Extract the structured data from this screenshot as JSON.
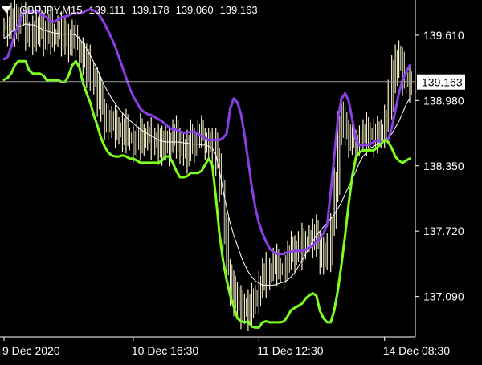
{
  "header": {
    "symbol": "GBPJPY,M15",
    "open": "139.111",
    "high": "139.178",
    "low": "139.060",
    "close": "139.163"
  },
  "colors": {
    "background": "#000000",
    "axis": "#ffffff",
    "price_bars": "#f5f0c8",
    "upper_band": "#8a3ee6",
    "lower_band": "#7cff1e",
    "middle_line": "#ffffff",
    "price_line": "#c8c8c8"
  },
  "chart_data": {
    "type": "line",
    "title": "",
    "ylim": [
      136.7,
      139.95
    ],
    "y_ticks": [
      "139.610",
      "138.980",
      "138.350",
      "137.720",
      "137.090"
    ],
    "y_tick_values": [
      139.61,
      138.98,
      138.35,
      137.72,
      137.09
    ],
    "x_ticks": [
      "9 Dec 2020",
      "10 Dec 16:30",
      "11 Dec 12:30",
      "14 Dec 08:30"
    ],
    "x_tick_positions": [
      0,
      36,
      71,
      106
    ],
    "current_price": "139.163",
    "current_price_value": 139.163,
    "x_max": 113,
    "series": [
      {
        "key": "upper",
        "values": [
          139.38,
          139.4,
          139.5,
          139.62,
          139.71,
          139.8,
          139.84,
          139.84,
          139.83,
          139.85,
          139.82,
          139.8,
          139.78,
          139.74,
          139.74,
          139.76,
          139.78,
          139.79,
          139.8,
          139.82,
          139.82,
          139.82,
          139.83,
          139.85,
          139.86,
          139.85,
          139.83,
          139.78,
          139.72,
          139.65,
          139.58,
          139.5,
          139.4,
          139.3,
          139.2,
          139.1,
          139.02,
          138.96,
          138.9,
          138.87,
          138.85,
          138.84,
          138.82,
          138.8,
          138.78,
          138.75,
          138.72,
          138.7,
          138.7,
          138.68,
          138.67,
          138.67,
          138.68,
          138.68,
          138.66,
          138.64,
          138.62,
          138.6,
          138.6,
          138.6,
          138.6,
          138.62,
          138.66,
          138.9,
          139.0,
          138.96,
          138.85,
          138.65,
          138.4,
          138.15,
          137.95,
          137.8,
          137.7,
          137.62,
          137.55,
          137.52,
          137.5,
          137.5,
          137.5,
          137.52,
          137.52,
          137.53,
          137.53,
          137.53,
          137.54,
          137.56,
          137.58,
          137.62,
          137.65,
          137.7,
          137.78,
          138.1,
          138.45,
          138.8,
          139.0,
          139.05,
          138.98,
          138.8,
          138.6,
          138.55,
          138.55,
          138.55,
          138.56,
          138.58,
          138.6,
          138.58,
          138.6,
          138.6,
          138.72,
          138.88,
          139.05,
          139.18,
          139.25,
          139.32
        ]
      },
      {
        "key": "lower",
        "values": [
          139.18,
          139.2,
          139.24,
          139.32,
          139.36,
          139.36,
          139.36,
          139.27,
          139.24,
          139.24,
          139.24,
          139.22,
          139.17,
          139.18,
          139.17,
          139.18,
          139.16,
          139.16,
          139.22,
          139.32,
          139.36,
          139.3,
          139.15,
          139.05,
          138.96,
          138.84,
          138.74,
          138.62,
          138.54,
          138.48,
          138.45,
          138.44,
          138.44,
          138.45,
          138.44,
          138.42,
          138.42,
          138.4,
          138.38,
          138.38,
          138.38,
          138.38,
          138.38,
          138.38,
          138.4,
          138.44,
          138.44,
          138.38,
          138.3,
          138.24,
          138.24,
          138.25,
          138.28,
          138.28,
          138.28,
          138.3,
          138.36,
          138.42,
          138.36,
          138.05,
          137.7,
          137.44,
          137.25,
          137.1,
          136.99,
          136.88,
          136.85,
          136.84,
          136.85,
          136.8,
          136.79,
          136.79,
          136.84,
          136.85,
          136.84,
          136.84,
          136.84,
          136.84,
          136.85,
          136.9,
          136.96,
          136.98,
          137.0,
          137.02,
          137.07,
          137.1,
          137.12,
          137.1,
          136.95,
          136.88,
          136.84,
          136.84,
          136.96,
          137.15,
          137.4,
          137.68,
          137.98,
          138.25,
          138.43,
          138.48,
          138.5,
          138.5,
          138.5,
          138.5,
          138.53,
          138.56,
          138.6,
          138.58,
          138.52,
          138.44,
          138.4,
          138.38,
          138.4,
          138.42
        ]
      },
      {
        "key": "middle",
        "values": [
          139.58,
          139.6,
          139.64,
          139.66,
          139.69,
          139.7,
          139.72,
          139.71,
          139.71,
          139.7,
          139.68,
          139.66,
          139.65,
          139.64,
          139.63,
          139.63,
          139.62,
          139.62,
          139.62,
          139.62,
          139.61,
          139.58,
          139.53,
          139.48,
          139.42,
          139.35,
          139.28,
          139.2,
          139.12,
          139.06,
          139.0,
          138.95,
          138.9,
          138.86,
          138.82,
          138.79,
          138.76,
          138.73,
          138.7,
          138.68,
          138.66,
          138.64,
          138.62,
          138.6,
          138.59,
          138.58,
          138.58,
          138.58,
          138.58,
          138.58,
          138.57,
          138.57,
          138.56,
          138.56,
          138.56,
          138.55,
          138.55,
          138.54,
          138.52,
          138.46,
          138.3,
          138.12,
          137.95,
          137.8,
          137.68,
          137.58,
          137.48,
          137.4,
          137.33,
          137.28,
          137.24,
          137.22,
          137.2,
          137.2,
          137.2,
          137.2,
          137.21,
          137.22,
          137.23,
          137.25,
          137.28,
          137.32,
          137.38,
          137.44,
          137.5,
          137.56,
          137.62,
          137.68,
          137.72,
          137.76,
          137.8,
          137.84,
          137.88,
          137.94,
          138.0,
          138.08,
          138.15,
          138.22,
          138.3,
          138.38,
          138.44,
          138.48,
          138.52,
          138.54,
          138.56,
          138.58,
          138.6,
          138.62,
          138.66,
          138.72,
          138.78,
          138.86,
          138.94,
          139.0
        ]
      },
      {
        "key": "price",
        "values": [
          139.68,
          139.7,
          139.74,
          139.7,
          139.76,
          139.73,
          139.64,
          139.62,
          139.66,
          139.6,
          139.68,
          139.58,
          139.7,
          139.62,
          139.6,
          139.66,
          139.58,
          139.55,
          139.6,
          139.56,
          139.5,
          139.45,
          139.35,
          139.3,
          139.22,
          139.14,
          139.0,
          138.9,
          138.8,
          138.75,
          138.72,
          138.7,
          138.68,
          138.7,
          138.62,
          138.6,
          138.56,
          138.6,
          138.64,
          138.6,
          138.62,
          138.58,
          138.62,
          138.56,
          138.5,
          138.52,
          138.6,
          138.64,
          138.62,
          138.52,
          138.45,
          138.52,
          138.58,
          138.6,
          138.64,
          138.62,
          138.58,
          138.54,
          138.5,
          138.4,
          138.1,
          137.7,
          137.35,
          137.2,
          137.05,
          136.98,
          136.95,
          137.0,
          136.96,
          137.02,
          137.1,
          137.2,
          137.28,
          137.3,
          137.34,
          137.4,
          137.36,
          137.35,
          137.4,
          137.45,
          137.5,
          137.56,
          137.55,
          137.6,
          137.62,
          137.64,
          137.66,
          137.6,
          137.5,
          137.45,
          137.5,
          137.8,
          138.2,
          138.7,
          138.8,
          138.64,
          138.6,
          138.58,
          138.6,
          138.6,
          138.62,
          138.65,
          138.65,
          138.63,
          138.62,
          138.7,
          138.8,
          139.0,
          139.2,
          139.4,
          139.3,
          139.2,
          139.17,
          139.16
        ]
      }
    ]
  }
}
